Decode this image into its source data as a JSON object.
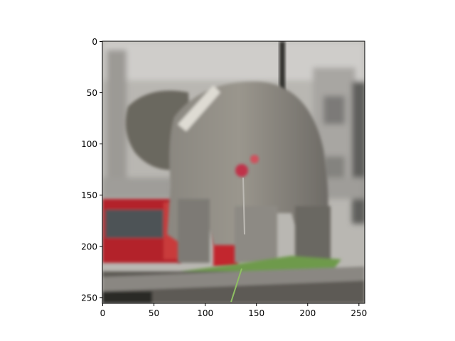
{
  "image": {
    "subject": "elephant-photo",
    "x_range": [
      0,
      256
    ],
    "y_range": [
      256,
      0
    ]
  },
  "axes": {
    "x_ticks": [
      0,
      50,
      100,
      150,
      200,
      250
    ],
    "y_ticks": [
      0,
      50,
      100,
      150,
      200,
      250
    ]
  },
  "colors": {
    "frame": "#000000",
    "background": "#ffffff"
  }
}
